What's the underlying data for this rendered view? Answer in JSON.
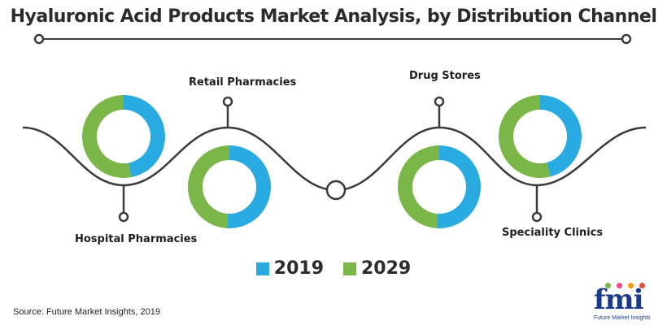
{
  "chart_data": {
    "type": "pie",
    "title": "Hyaluronic Acid Products Market Analysis, by Distribution Channel",
    "categories": [
      "Hospital Pharmacies",
      "Retail Pharmacies",
      "Drug Stores",
      "Speciality Clinics"
    ],
    "series": [
      {
        "name": "2019",
        "color": "#29abe2",
        "values": [
          47,
          51,
          51,
          46
        ]
      },
      {
        "name": "2029",
        "color": "#7ab648",
        "values": [
          53,
          49,
          49,
          54
        ]
      }
    ],
    "legend": [
      "2019",
      "2029"
    ],
    "legend_position": "bottom-center"
  },
  "source": "Source: Future Market Insights, 2019",
  "logo": {
    "mark": "fmi",
    "subtitle": "Future Market Insights"
  },
  "colors": {
    "line": "#3a3a3a",
    "text": "#2b2b2b",
    "brand": "#1a3a8a"
  }
}
